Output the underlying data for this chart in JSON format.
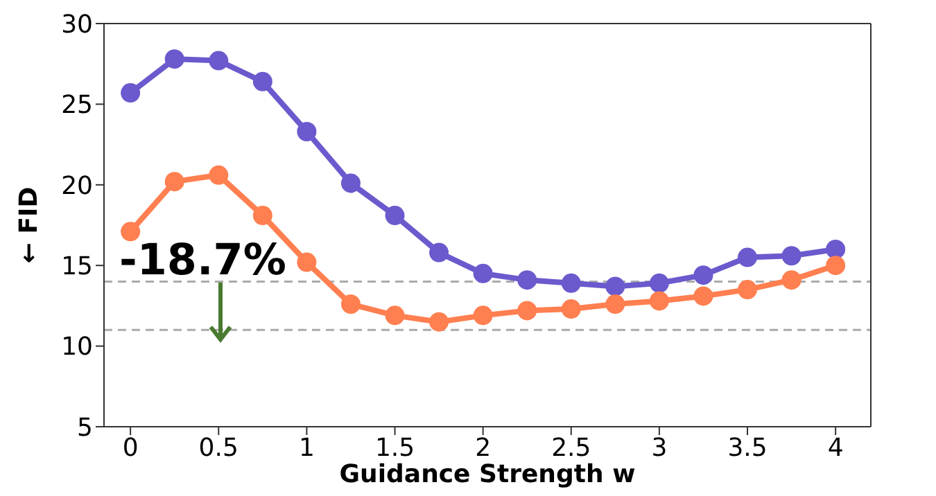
{
  "chart_data": {
    "type": "line",
    "xlabel": "Guidance Strength  w",
    "ylabel": "← FID",
    "x": [
      0,
      0.25,
      0.5,
      0.75,
      1,
      1.25,
      1.5,
      1.75,
      2,
      2.25,
      2.5,
      2.75,
      3,
      3.25,
      3.5,
      3.75,
      4
    ],
    "series": [
      {
        "color": "#6a5acd",
        "values": [
          25.7,
          27.8,
          27.7,
          26.4,
          23.3,
          20.1,
          18.1,
          15.8,
          14.5,
          14.1,
          13.9,
          13.7,
          13.9,
          14.4,
          15.5,
          15.6,
          16.0
        ]
      },
      {
        "color": "#ff7f50",
        "values": [
          17.1,
          20.2,
          20.6,
          18.1,
          15.2,
          12.6,
          11.9,
          11.5,
          11.9,
          12.2,
          12.3,
          12.6,
          12.8,
          13.1,
          13.5,
          14.1,
          15.0
        ]
      }
    ],
    "xlim": [
      -0.15,
      4.2
    ],
    "xticks": [
      0,
      0.5,
      1,
      1.5,
      2,
      2.5,
      3,
      3.5,
      4
    ],
    "ylim": [
      5,
      30
    ],
    "yticks": [
      5,
      10,
      15,
      20,
      25,
      30
    ],
    "ref_lines": [
      {
        "axis": "y",
        "value": 14.0,
        "color": "#aaaaaa",
        "line_style": "dashed"
      },
      {
        "axis": "y",
        "value": 11.0,
        "color": "#aaaaaa",
        "line_style": "dashed"
      }
    ],
    "annotations": [
      "-18.7%"
    ],
    "grid": false,
    "legend": false,
    "marker": "circle",
    "line_style": "solid"
  }
}
